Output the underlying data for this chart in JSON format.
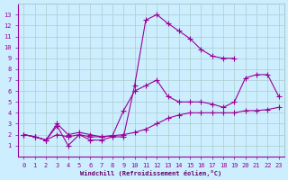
{
  "background_color": "#cceeff",
  "grid_color": "#aacccc",
  "line_color": "#990099",
  "marker": "+",
  "xlabel": "Windchill (Refroidissement éolien,°C)",
  "xlabel_color": "#660066",
  "xlim": [
    -0.5,
    23.5
  ],
  "ylim": [
    0,
    14
  ],
  "xticks": [
    0,
    1,
    2,
    3,
    4,
    5,
    6,
    7,
    8,
    9,
    10,
    11,
    12,
    13,
    14,
    15,
    16,
    17,
    18,
    19,
    20,
    21,
    22,
    23
  ],
  "yticks": [
    1,
    2,
    3,
    4,
    5,
    6,
    7,
    8,
    9,
    10,
    11,
    12,
    13
  ],
  "series": [
    {
      "x": [
        0,
        1,
        2,
        3,
        4,
        5,
        6,
        7,
        8,
        9,
        10,
        11,
        12,
        13,
        14,
        15,
        16,
        17,
        18,
        19
      ],
      "y": [
        2.0,
        1.8,
        1.5,
        2.8,
        1.0,
        2.0,
        1.5,
        1.5,
        1.8,
        1.8,
        6.5,
        12.5,
        13.0,
        12.2,
        11.5,
        10.8,
        9.8,
        9.2,
        9.0,
        9.0
      ]
    },
    {
      "x": [
        0,
        1,
        2,
        3,
        4,
        5,
        6,
        7,
        8,
        9,
        10,
        11,
        12,
        13,
        14,
        15,
        16,
        17,
        18,
        19,
        20,
        21,
        22,
        23
      ],
      "y": [
        2.0,
        1.8,
        1.5,
        3.0,
        2.0,
        2.2,
        2.0,
        1.8,
        1.9,
        4.2,
        6.0,
        6.5,
        7.0,
        5.5,
        5.0,
        5.0,
        5.0,
        4.8,
        4.5,
        5.0,
        7.2,
        7.5,
        7.5,
        5.5
      ]
    },
    {
      "x": [
        0,
        1,
        2,
        3,
        4,
        5,
        6,
        7,
        8,
        9,
        10,
        11,
        12,
        13,
        14,
        15,
        16,
        17,
        18,
        19,
        20,
        21,
        22,
        23
      ],
      "y": [
        2.0,
        1.8,
        1.5,
        2.0,
        1.8,
        2.0,
        1.8,
        1.8,
        1.9,
        2.0,
        2.2,
        2.5,
        3.0,
        3.5,
        3.8,
        4.0,
        4.0,
        4.0,
        4.0,
        4.0,
        4.2,
        4.2,
        4.3,
        4.5
      ]
    }
  ]
}
